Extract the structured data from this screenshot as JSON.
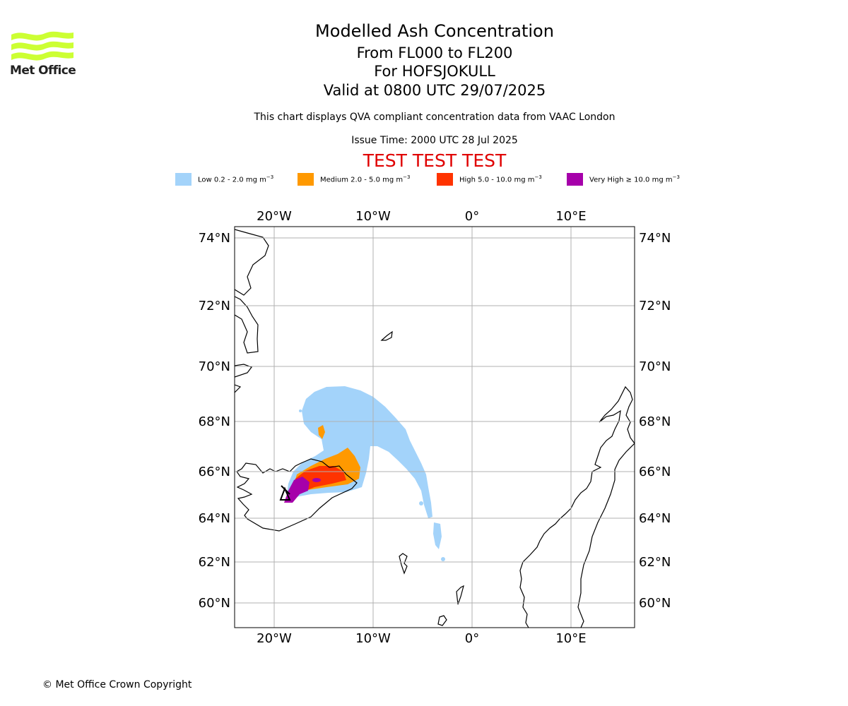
{
  "header": {
    "logo_text": "Met Office",
    "title": "Modelled Ash Concentration",
    "level_range": "From FL000 to FL200",
    "volcano": "For HOFSJOKULL",
    "valid_time": "Valid at 0800 UTC 29/07/2025",
    "description": "This chart displays QVA compliant concentration data from VAAC London",
    "issue_time": "Issue Time: 2000 UTC 28 Jul 2025",
    "test_banner": "TEST TEST TEST"
  },
  "legend": [
    {
      "label": "Low 0.2 - 2.0 mg m",
      "color": "#a3d3fa"
    },
    {
      "label": "Medium 2.0 - 5.0 mg m",
      "color": "#ff9900"
    },
    {
      "label": "High 5.0 - 10.0 mg m",
      "color": "#ff3300"
    },
    {
      "label": "Very High ≥ 10.0 mg m",
      "color": "#a600aa"
    }
  ],
  "legend_unit_exponent": "−3",
  "axes": {
    "lon_top": [
      "20°W",
      "10°W",
      "0°",
      "10°E"
    ],
    "lon_bottom": [
      "20°W",
      "10°W",
      "0°",
      "10°E"
    ],
    "lat_left": [
      "74°N",
      "72°N",
      "70°N",
      "68°N",
      "66°N",
      "64°N",
      "62°N",
      "60°N"
    ],
    "lat_right": [
      "74°N",
      "72°N",
      "70°N",
      "68°N",
      "66°N",
      "64°N",
      "62°N",
      "60°N"
    ]
  },
  "colors": {
    "logo": "#ccff33",
    "test_banner": "#e00000",
    "gridlines": "#b0b0b0"
  },
  "footer": {
    "copyright": "© Met Office Crown Copyright"
  }
}
